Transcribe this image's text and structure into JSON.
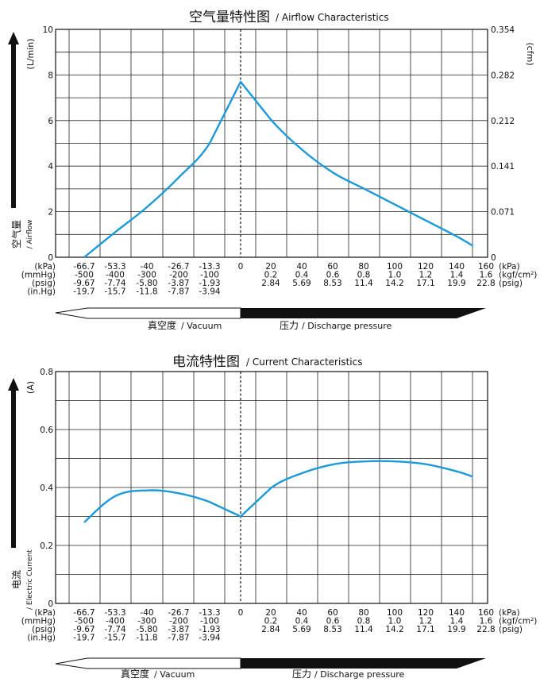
{
  "chart_data": [
    {
      "type": "line",
      "title": "空气量特性图",
      "subtitle": "/ Airflow Characteristics",
      "ylabel_cn": "空气量",
      "ylabel_en": "/ Airflow",
      "y_unit_left": "(L/min)",
      "y_unit_right": "(cfm)",
      "ylim": [
        0,
        10
      ],
      "yticks": [
        "10",
        "8",
        "6",
        "4",
        "2",
        "0"
      ],
      "yticks_right": [
        "0.354",
        "0.282",
        "0.212",
        "0.141",
        "0.071",
        "0"
      ],
      "x_axis_kpa": [
        -66.7,
        -53.3,
        -40,
        -26.7,
        -13.3,
        0,
        20,
        40,
        60,
        80,
        100,
        120,
        140,
        160
      ],
      "x": [
        -66.7,
        -53.3,
        -40,
        -26.7,
        -13.3,
        0,
        20,
        40,
        60,
        80,
        100,
        120,
        140,
        150
      ],
      "values": [
        0.0,
        1.1,
        2.2,
        3.5,
        5.0,
        7.7,
        6.0,
        4.7,
        3.7,
        3.0,
        2.3,
        1.6,
        0.9,
        0.5
      ],
      "series_color": "#1a9ad9",
      "grid": true
    },
    {
      "type": "line",
      "title": "电流特性图",
      "subtitle": "/ Current Characteristics",
      "ylabel_cn": "电流",
      "ylabel_en": "/ Electric Current",
      "y_unit_left": "(A)",
      "ylim": [
        0,
        0.8
      ],
      "yticks": [
        "0.8",
        "0.6",
        "0.4",
        "0.2",
        "0"
      ],
      "x": [
        -66.7,
        -53.3,
        -40,
        -26.7,
        -13.3,
        0,
        20,
        40,
        60,
        80,
        100,
        120,
        140,
        150
      ],
      "values": [
        0.28,
        0.37,
        0.39,
        0.38,
        0.35,
        0.3,
        0.4,
        0.45,
        0.48,
        0.49,
        0.49,
        0.48,
        0.455,
        0.437
      ],
      "series_color": "#1a9ad9",
      "grid": true
    }
  ],
  "x_table": {
    "units": [
      "(kPa)",
      "(mmHg)",
      "(psig)",
      "(in.Hg)"
    ],
    "vacuum_cols": [
      [
        "-66.7",
        "-500",
        "-9.67",
        "-19.7"
      ],
      [
        "-53.3",
        "-400",
        "-7.74",
        "-15.7"
      ],
      [
        "-40",
        "-300",
        "-5.80",
        "-11.8"
      ],
      [
        "-26.7",
        "-200",
        "-3.87",
        "-7.87"
      ],
      [
        "-13.3",
        "-100",
        "-1.93",
        "-3.94"
      ]
    ],
    "zero": "0",
    "pressure_cols": [
      [
        "20",
        "0.2",
        "2.84"
      ],
      [
        "40",
        "0.4",
        "5.69"
      ],
      [
        "60",
        "0.6",
        "8.53"
      ],
      [
        "80",
        "0.8",
        "11.4"
      ],
      [
        "100",
        "1.0",
        "14.2"
      ],
      [
        "120",
        "1.2",
        "17.1"
      ],
      [
        "140",
        "1.4",
        "19.9"
      ]
    ],
    "last_col": [
      "160",
      "1.6",
      "22.8"
    ],
    "right_units": [
      "(kPa)",
      "(kgf/cm²)",
      "(psig)"
    ]
  },
  "arrows": {
    "vacuum_cn": "真空度",
    "vacuum_en": "/ Vacuum",
    "pressure_cn": "压力",
    "pressure_en": "/ Discharge pressure"
  }
}
